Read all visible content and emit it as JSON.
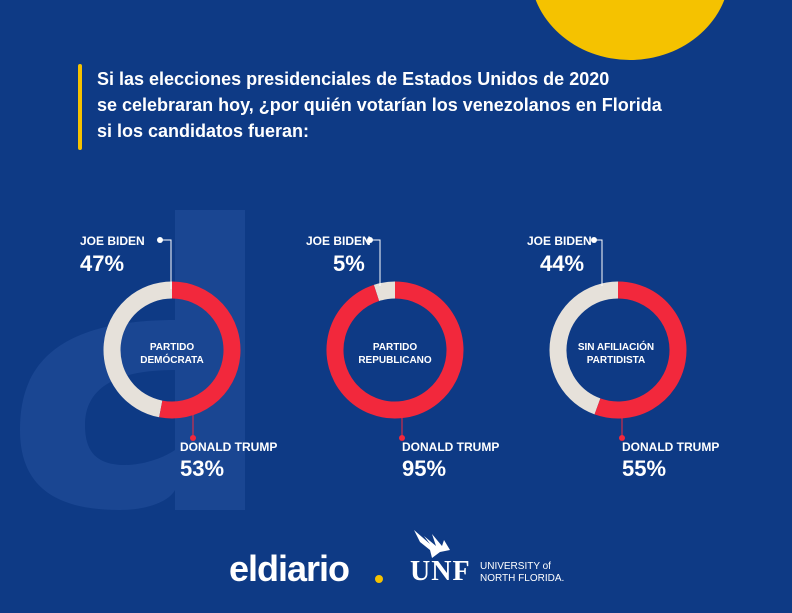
{
  "title_lines": [
    "Si las elecciones presidenciales de Estados Unidos de 2020",
    "se celebraran hoy, ¿por quién votarían los venezolanos en Florida",
    "si los candidatos fueran:"
  ],
  "colors": {
    "background": "#0e3a85",
    "accent": "#f5c200",
    "biden": "#e6e1da",
    "trump": "#f2283c",
    "watermark": "#1a4692"
  },
  "chart_data": [
    {
      "type": "pie",
      "group": "PARTIDO DEMÓCRATA",
      "group_lines": [
        "PARTIDO",
        "DEMÓCRATA"
      ],
      "slices": [
        {
          "name": "JOE BIDEN",
          "value": 47,
          "label": "47%"
        },
        {
          "name": "DONALD TRUMP",
          "value": 53,
          "label": "53%"
        }
      ]
    },
    {
      "type": "pie",
      "group": "PARTIDO REPUBLICANO",
      "group_lines": [
        "PARTIDO",
        "REPUBLICANO"
      ],
      "slices": [
        {
          "name": "JOE BIDEN",
          "value": 5,
          "label": "5%"
        },
        {
          "name": "DONALD TRUMP",
          "value": 95,
          "label": "95%"
        }
      ]
    },
    {
      "type": "pie",
      "group": "SIN AFILIACIÓN PARTIDISTA",
      "group_lines": [
        "SIN AFILIACIÓN",
        "PARTIDISTA"
      ],
      "slices": [
        {
          "name": "JOE BIDEN",
          "value": 44,
          "label": "44%"
        },
        {
          "name": "DONALD TRUMP",
          "value": 55,
          "label": "55%"
        }
      ]
    }
  ],
  "footer": {
    "brand": "eldiario",
    "unf": "UNF",
    "unf_sub_1": "UNIVERSITY of",
    "unf_sub_2": "NORTH FLORIDA."
  }
}
